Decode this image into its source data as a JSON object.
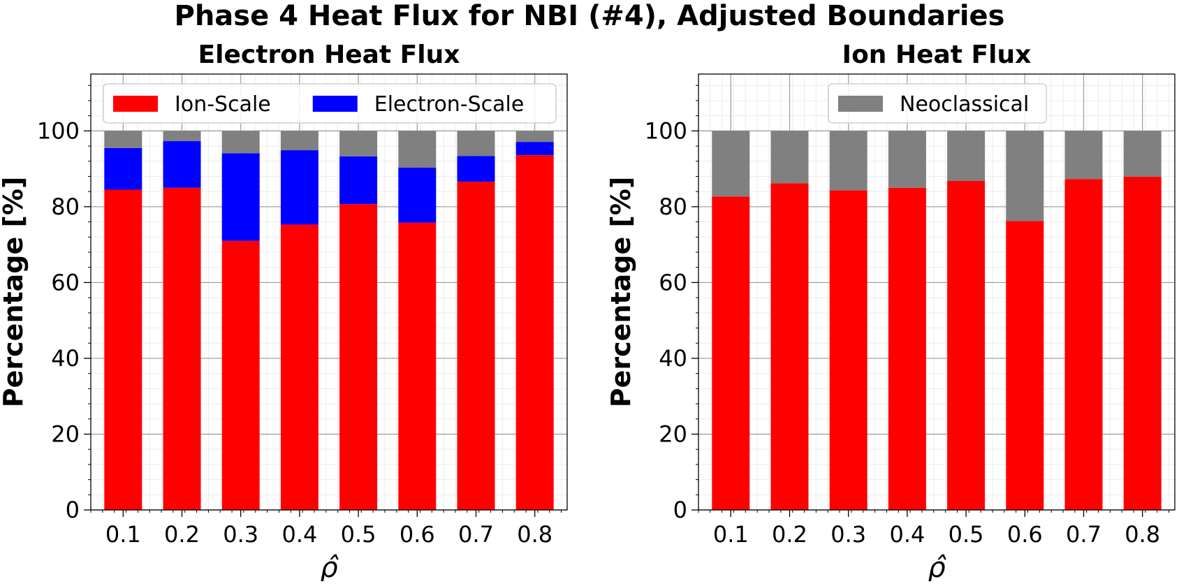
{
  "figure": {
    "suptitle": "Phase 4 Heat Flux for NBI (#4), Adjusted Boundaries"
  },
  "colors": {
    "ion_scale": "#ff0000",
    "electron_scale": "#0000ff",
    "neoclassical": "#808080"
  },
  "chart_data": [
    {
      "type": "bar",
      "stacked": true,
      "title": "Electron Heat Flux",
      "xlabel": "ρ̂",
      "ylabel": "Percentage [%]",
      "categories": [
        "0.1",
        "0.2",
        "0.3",
        "0.4",
        "0.5",
        "0.6",
        "0.7",
        "0.8"
      ],
      "ylim": [
        0,
        115
      ],
      "yticks": [
        "0",
        "20",
        "40",
        "60",
        "80",
        "100"
      ],
      "grid": true,
      "legend": {
        "placement": "top",
        "entries": [
          "Ion-Scale",
          "Electron-Scale"
        ]
      },
      "series": [
        {
          "name": "Ion-Scale",
          "color": "#ff0000",
          "values": [
            84.5,
            85.0,
            71.0,
            75.3,
            80.7,
            75.8,
            86.6,
            93.6
          ]
        },
        {
          "name": "Electron-Scale",
          "color": "#0000ff",
          "values": [
            11.0,
            12.3,
            23.1,
            19.6,
            12.6,
            14.5,
            6.8,
            3.5
          ]
        },
        {
          "name": "Neoclassical",
          "color": "#808080",
          "values": [
            4.5,
            2.7,
            5.9,
            5.1,
            6.7,
            9.7,
            6.6,
            2.9
          ]
        }
      ]
    },
    {
      "type": "bar",
      "stacked": true,
      "title": "Ion Heat Flux",
      "xlabel": "ρ̂",
      "ylabel": "Percentage [%]",
      "categories": [
        "0.1",
        "0.2",
        "0.3",
        "0.4",
        "0.5",
        "0.6",
        "0.7",
        "0.8"
      ],
      "ylim": [
        0,
        115
      ],
      "yticks": [
        "0",
        "20",
        "40",
        "60",
        "80",
        "100"
      ],
      "grid": true,
      "legend": {
        "placement": "top",
        "entries": [
          "Neoclassical"
        ]
      },
      "series": [
        {
          "name": "Ion-Scale",
          "color": "#ff0000",
          "values": [
            82.7,
            86.2,
            84.3,
            85.0,
            86.8,
            76.2,
            87.3,
            87.9
          ]
        },
        {
          "name": "Neoclassical",
          "color": "#808080",
          "values": [
            17.3,
            13.8,
            15.7,
            15.0,
            13.2,
            23.8,
            12.7,
            12.1
          ]
        }
      ]
    }
  ]
}
